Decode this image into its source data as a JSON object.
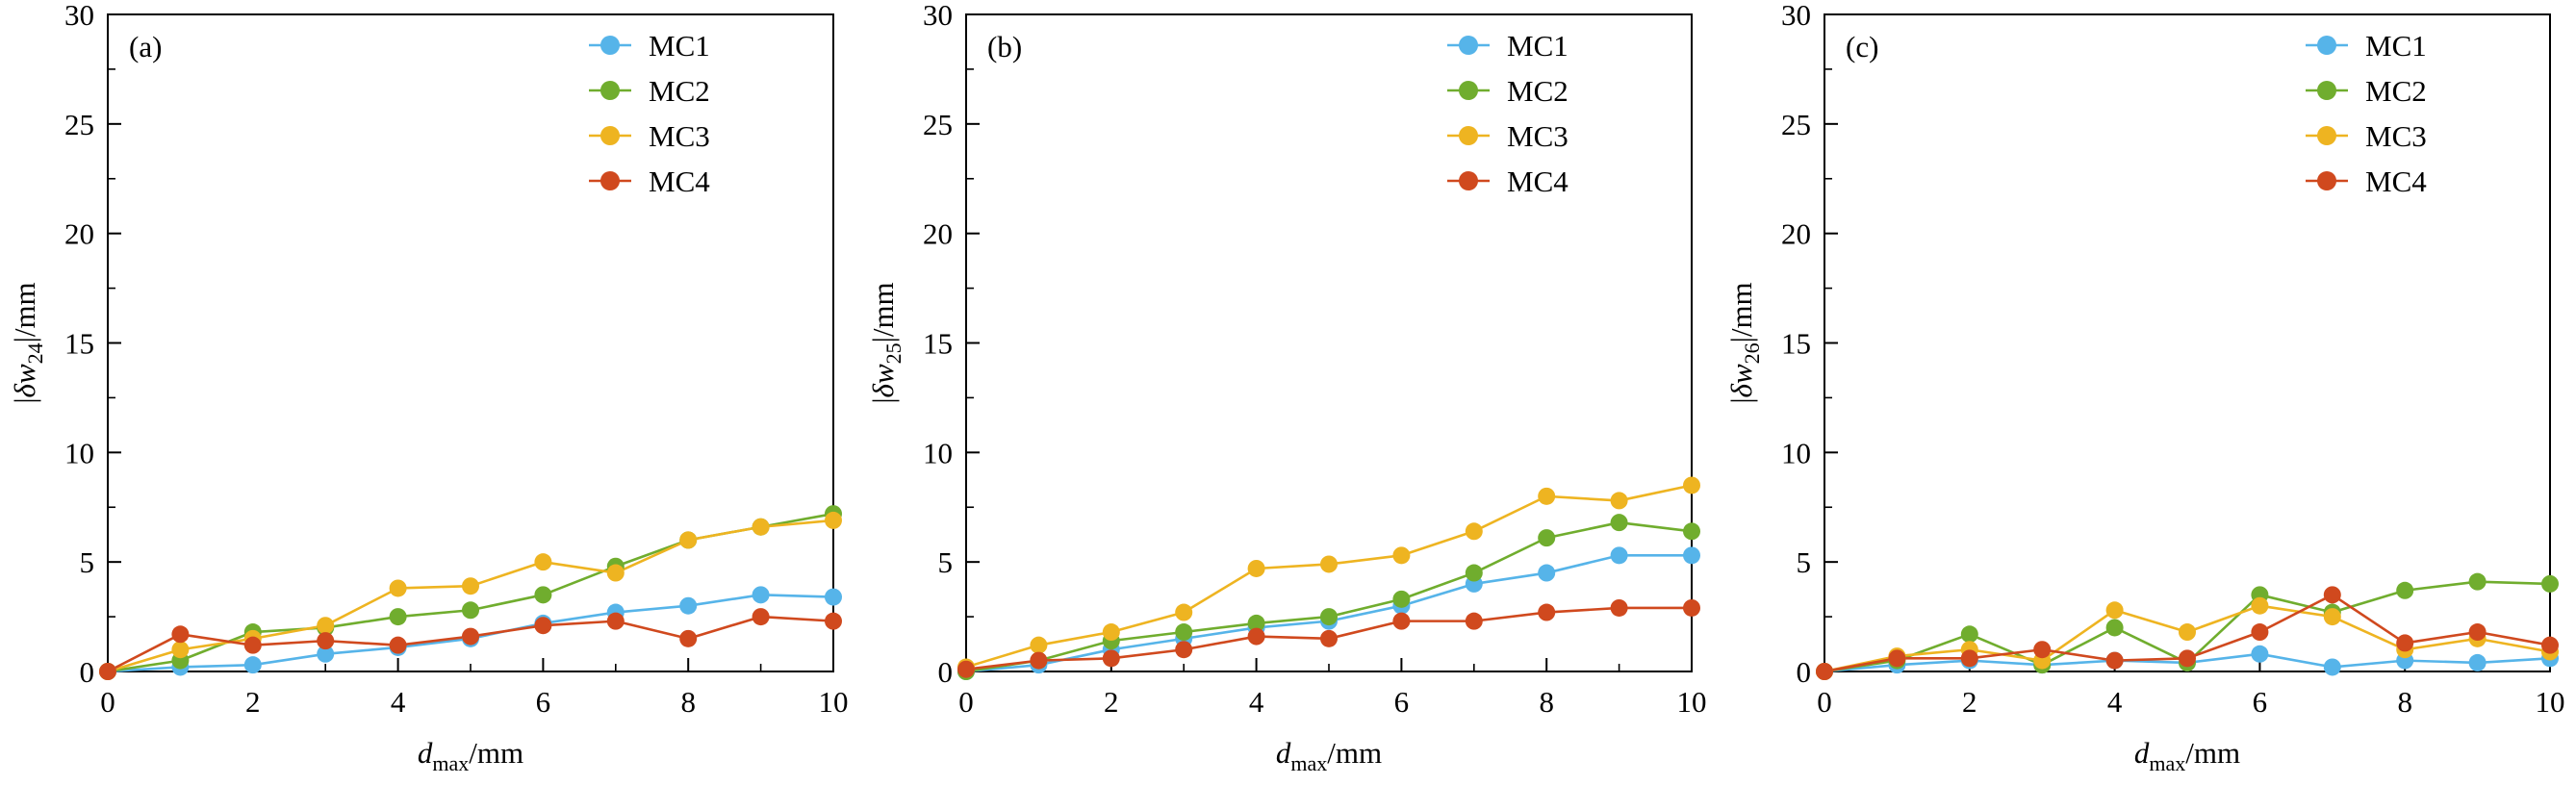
{
  "figure": {
    "background": "#ffffff",
    "axis_color": "#000000"
  },
  "chart_data": [
    {
      "type": "line",
      "panel_label": "(a)",
      "xlabel": {
        "symbol": "d",
        "sub": "max",
        "suffix": "/mm"
      },
      "ylabel": {
        "prefix": "|",
        "symbol": "δw",
        "sub": "24",
        "suffix": "|/mm"
      },
      "xlim": [
        0,
        10
      ],
      "ylim": [
        0,
        30
      ],
      "xticks": [
        0,
        2,
        4,
        6,
        8,
        10
      ],
      "xminor": [
        1,
        3,
        5,
        7,
        9
      ],
      "yticks": [
        0,
        5,
        10,
        15,
        20,
        25,
        30
      ],
      "yminor": [
        2.5,
        7.5,
        12.5,
        17.5,
        22.5,
        27.5
      ],
      "grid": false,
      "legend_position": "top-right",
      "x": [
        0,
        1,
        2,
        3,
        4,
        5,
        6,
        7,
        8,
        9,
        10
      ],
      "series": [
        {
          "name": "MC1",
          "color": "#56b4e9",
          "values": [
            0,
            0.2,
            0.3,
            0.8,
            1.1,
            1.5,
            2.2,
            2.7,
            3.0,
            3.5,
            3.4
          ]
        },
        {
          "name": "MC2",
          "color": "#70ad2e",
          "values": [
            0,
            0.5,
            1.8,
            2.0,
            2.5,
            2.8,
            3.5,
            4.8,
            6.0,
            6.6,
            7.2
          ]
        },
        {
          "name": "MC3",
          "color": "#eeb421",
          "values": [
            0,
            1.0,
            1.5,
            2.1,
            3.8,
            3.9,
            5.0,
            4.5,
            6.0,
            6.6,
            6.9
          ]
        },
        {
          "name": "MC4",
          "color": "#d0491e",
          "values": [
            0,
            1.7,
            1.2,
            1.4,
            1.2,
            1.6,
            2.1,
            2.3,
            1.5,
            2.5,
            2.3
          ]
        }
      ]
    },
    {
      "type": "line",
      "panel_label": "(b)",
      "xlabel": {
        "symbol": "d",
        "sub": "max",
        "suffix": "/mm"
      },
      "ylabel": {
        "prefix": "|",
        "symbol": "δw",
        "sub": "25",
        "suffix": "|/mm"
      },
      "xlim": [
        0,
        10
      ],
      "ylim": [
        0,
        30
      ],
      "xticks": [
        0,
        2,
        4,
        6,
        8,
        10
      ],
      "xminor": [
        1,
        3,
        5,
        7,
        9
      ],
      "yticks": [
        0,
        5,
        10,
        15,
        20,
        25,
        30
      ],
      "yminor": [
        2.5,
        7.5,
        12.5,
        17.5,
        22.5,
        27.5
      ],
      "grid": false,
      "legend_position": "top-right",
      "x": [
        0,
        1,
        2,
        3,
        4,
        5,
        6,
        7,
        8,
        9,
        10
      ],
      "series": [
        {
          "name": "MC1",
          "color": "#56b4e9",
          "values": [
            0,
            0.3,
            1.0,
            1.5,
            2.0,
            2.3,
            3.0,
            4.0,
            4.5,
            5.3,
            5.3
          ]
        },
        {
          "name": "MC2",
          "color": "#70ad2e",
          "values": [
            0,
            0.5,
            1.4,
            1.8,
            2.2,
            2.5,
            3.3,
            4.5,
            6.1,
            6.8,
            6.4
          ]
        },
        {
          "name": "MC3",
          "color": "#eeb421",
          "values": [
            0.2,
            1.2,
            1.8,
            2.7,
            4.7,
            4.9,
            5.3,
            6.4,
            8.0,
            7.8,
            8.5
          ]
        },
        {
          "name": "MC4",
          "color": "#d0491e",
          "values": [
            0.1,
            0.5,
            0.6,
            1.0,
            1.6,
            1.5,
            2.3,
            2.3,
            2.7,
            2.9,
            2.9
          ]
        }
      ]
    },
    {
      "type": "line",
      "panel_label": "(c)",
      "xlabel": {
        "symbol": "d",
        "sub": "max",
        "suffix": "/mm"
      },
      "ylabel": {
        "prefix": "|",
        "symbol": "δw",
        "sub": "26",
        "suffix": "|/mm"
      },
      "xlim": [
        0,
        10
      ],
      "ylim": [
        0,
        30
      ],
      "xticks": [
        0,
        2,
        4,
        6,
        8,
        10
      ],
      "xminor": [
        1,
        3,
        5,
        7,
        9
      ],
      "yticks": [
        0,
        5,
        10,
        15,
        20,
        25,
        30
      ],
      "yminor": [
        2.5,
        7.5,
        12.5,
        17.5,
        22.5,
        27.5
      ],
      "grid": false,
      "legend_position": "top-right",
      "x": [
        0,
        1,
        2,
        3,
        4,
        5,
        6,
        7,
        8,
        9,
        10
      ],
      "series": [
        {
          "name": "MC1",
          "color": "#56b4e9",
          "values": [
            0,
            0.3,
            0.5,
            0.3,
            0.5,
            0.4,
            0.8,
            0.2,
            0.5,
            0.4,
            0.6
          ]
        },
        {
          "name": "MC2",
          "color": "#70ad2e",
          "values": [
            0,
            0.5,
            1.7,
            0.3,
            2.0,
            0.4,
            3.5,
            2.7,
            3.7,
            4.1,
            4.0
          ]
        },
        {
          "name": "MC3",
          "color": "#eeb421",
          "values": [
            0,
            0.7,
            1.0,
            0.5,
            2.8,
            1.8,
            3.0,
            2.5,
            1.0,
            1.5,
            0.9
          ]
        },
        {
          "name": "MC4",
          "color": "#d0491e",
          "values": [
            0,
            0.6,
            0.6,
            1.0,
            0.5,
            0.6,
            1.8,
            3.5,
            1.3,
            1.8,
            1.2
          ]
        }
      ]
    }
  ]
}
